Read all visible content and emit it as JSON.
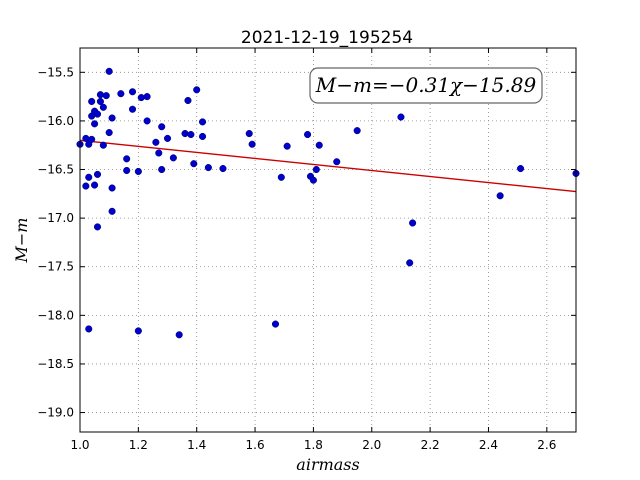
{
  "chart_data": {
    "type": "scatter",
    "title": "2021-12-19_195254",
    "xlabel": "airmass",
    "ylabel": "M−m",
    "xlim": [
      1.0,
      2.7
    ],
    "ylim": [
      -19.2,
      -15.25
    ],
    "y_inverted": true,
    "grid": true,
    "x_ticks": [
      1.0,
      1.2,
      1.4,
      1.6,
      1.8,
      2.0,
      2.2,
      2.4,
      2.6
    ],
    "x_tick_labels": [
      "1.0",
      "1.2",
      "1.4",
      "1.6",
      "1.8",
      "2.0",
      "2.2",
      "2.4",
      "2.6"
    ],
    "y_ticks": [
      -15.5,
      -16.0,
      -16.5,
      -17.0,
      -17.5,
      -18.0,
      -18.5,
      -19.0
    ],
    "y_tick_labels": [
      "−15.5",
      "−16.0",
      "−16.5",
      "−17.0",
      "−17.5",
      "−18.0",
      "−18.5",
      "−19.0"
    ],
    "annotation": "M−m=−0.31χ−15.89",
    "colors": {
      "points": "#0000cc",
      "fit_line": "#cc0000",
      "grid": "#888888"
    },
    "fit_line": {
      "slope": -0.31,
      "intercept": -15.89
    },
    "points": [
      [
        1.0,
        -16.24
      ],
      [
        1.02,
        -16.67
      ],
      [
        1.02,
        -16.18
      ],
      [
        1.03,
        -16.24
      ],
      [
        1.03,
        -16.58
      ],
      [
        1.03,
        -18.14
      ],
      [
        1.04,
        -15.95
      ],
      [
        1.04,
        -16.19
      ],
      [
        1.04,
        -15.8
      ],
      [
        1.05,
        -15.9
      ],
      [
        1.05,
        -16.03
      ],
      [
        1.05,
        -16.66
      ],
      [
        1.06,
        -15.93
      ],
      [
        1.06,
        -16.55
      ],
      [
        1.06,
        -17.09
      ],
      [
        1.07,
        -15.73
      ],
      [
        1.07,
        -15.8
      ],
      [
        1.08,
        -15.86
      ],
      [
        1.08,
        -16.25
      ],
      [
        1.09,
        -15.74
      ],
      [
        1.1,
        -16.12
      ],
      [
        1.1,
        -15.49
      ],
      [
        1.11,
        -15.97
      ],
      [
        1.11,
        -16.69
      ],
      [
        1.11,
        -16.93
      ],
      [
        1.14,
        -15.72
      ],
      [
        1.16,
        -16.39
      ],
      [
        1.16,
        -16.51
      ],
      [
        1.18,
        -15.7
      ],
      [
        1.18,
        -15.88
      ],
      [
        1.2,
        -16.52
      ],
      [
        1.2,
        -18.16
      ],
      [
        1.21,
        -15.76
      ],
      [
        1.23,
        -15.75
      ],
      [
        1.23,
        -16.0
      ],
      [
        1.26,
        -16.22
      ],
      [
        1.27,
        -16.33
      ],
      [
        1.28,
        -16.06
      ],
      [
        1.28,
        -16.5
      ],
      [
        1.3,
        -16.18
      ],
      [
        1.32,
        -16.38
      ],
      [
        1.34,
        -18.2
      ],
      [
        1.36,
        -16.13
      ],
      [
        1.37,
        -15.79
      ],
      [
        1.38,
        -16.14
      ],
      [
        1.39,
        -16.44
      ],
      [
        1.4,
        -15.68
      ],
      [
        1.42,
        -16.01
      ],
      [
        1.42,
        -16.16
      ],
      [
        1.44,
        -16.48
      ],
      [
        1.49,
        -16.49
      ],
      [
        1.58,
        -16.13
      ],
      [
        1.59,
        -16.24
      ],
      [
        1.67,
        -18.09
      ],
      [
        1.69,
        -16.58
      ],
      [
        1.71,
        -16.26
      ],
      [
        1.78,
        -16.14
      ],
      [
        1.79,
        -16.57
      ],
      [
        1.8,
        -16.61
      ],
      [
        1.81,
        -16.5
      ],
      [
        1.82,
        -16.25
      ],
      [
        1.88,
        -16.42
      ],
      [
        1.95,
        -16.1
      ],
      [
        2.1,
        -15.96
      ],
      [
        2.13,
        -17.46
      ],
      [
        2.14,
        -17.05
      ],
      [
        2.44,
        -16.77
      ],
      [
        2.51,
        -16.49
      ],
      [
        2.7,
        -16.54
      ]
    ]
  }
}
